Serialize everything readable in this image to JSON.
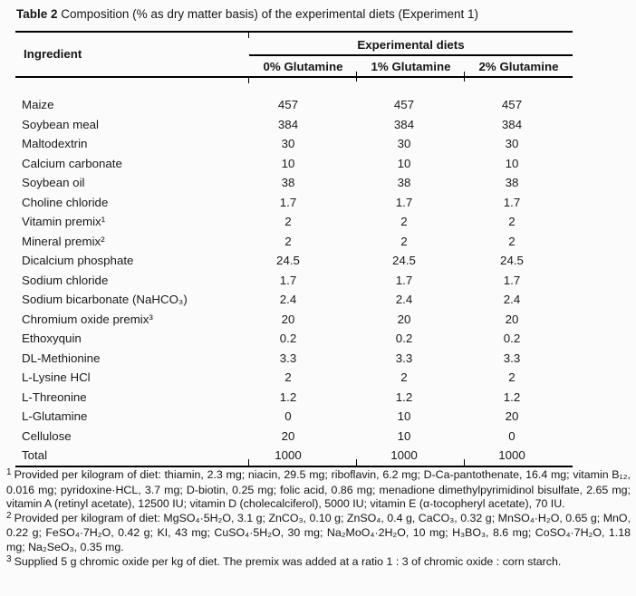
{
  "caption": {
    "label": "Table 2",
    "text": "Composition (% as dry matter basis) of the experimental diets (Experiment 1)"
  },
  "table": {
    "ingredient_header": "Ingredient",
    "group_header": "Experimental diets",
    "columns": [
      "0% Glutamine",
      "1% Glutamine",
      "2% Glutamine"
    ],
    "rows": [
      {
        "ingredient": "Maize",
        "values": [
          "457",
          "457",
          "457"
        ]
      },
      {
        "ingredient": "Soybean meal",
        "values": [
          "384",
          "384",
          "384"
        ]
      },
      {
        "ingredient": "Maltodextrin",
        "values": [
          "30",
          "30",
          "30"
        ]
      },
      {
        "ingredient": "Calcium carbonate",
        "values": [
          "10",
          "10",
          "10"
        ]
      },
      {
        "ingredient": "Soybean oil",
        "values": [
          "38",
          "38",
          "38"
        ]
      },
      {
        "ingredient": "Choline chloride",
        "values": [
          "1.7",
          "1.7",
          "1.7"
        ]
      },
      {
        "ingredient": "Vitamin premix¹",
        "values": [
          "2",
          "2",
          "2"
        ]
      },
      {
        "ingredient": "Mineral premix²",
        "values": [
          "2",
          "2",
          "2"
        ]
      },
      {
        "ingredient": "Dicalcium phosphate",
        "values": [
          "24.5",
          "24.5",
          "24.5"
        ]
      },
      {
        "ingredient": "Sodium chloride",
        "values": [
          "1.7",
          "1.7",
          "1.7"
        ]
      },
      {
        "ingredient": "Sodium bicarbonate (NaHCO₃)",
        "values": [
          "2.4",
          "2.4",
          "2.4"
        ]
      },
      {
        "ingredient": "Chromium oxide premix³",
        "values": [
          "20",
          "20",
          "20"
        ]
      },
      {
        "ingredient": "Ethoxyquin",
        "values": [
          "0.2",
          "0.2",
          "0.2"
        ]
      },
      {
        "ingredient": "DL-Methionine",
        "values": [
          "3.3",
          "3.3",
          "3.3"
        ]
      },
      {
        "ingredient": "L-Lysine HCl",
        "values": [
          "2",
          "2",
          "2"
        ]
      },
      {
        "ingredient": "L-Threonine",
        "values": [
          "1.2",
          "1.2",
          "1.2"
        ]
      },
      {
        "ingredient": "L-Glutamine",
        "values": [
          "0",
          "10",
          "20"
        ]
      },
      {
        "ingredient": "Cellulose",
        "values": [
          "20",
          "10",
          "0"
        ]
      },
      {
        "ingredient": "Total",
        "values": [
          "1000",
          "1000",
          "1000"
        ]
      }
    ]
  },
  "footnotes": [
    {
      "marker": "1",
      "text": "Provided per kilogram of diet: thiamin, 2.3 mg; niacin, 29.5 mg; riboflavin, 6.2 mg; D-Ca-pantothenate, 16.4 mg; vitamin B₁₂, 0.016 mg; pyridoxine·HCL, 3.7 mg; D-biotin, 0.25 mg; folic acid, 0.86 mg; menadione dimethylpyrimidinol bisulfate, 2.65 mg; vitamin A (retinyl acetate), 12500 IU; vitamin D (cholecalciferol), 5000 IU; vitamin E (α-tocopheryl acetate), 70 IU."
    },
    {
      "marker": "2",
      "text": "Provided per kilogram of diet: MgSO₄·5H₂O, 3.1 g; ZnCO₃, 0.10 g; ZnSO₄, 0.4 g, CaCO₃, 0.32 g; MnSO₄·H₂O, 0.65 g; MnO, 0.22 g; FeSO₄·7H₂O, 0.42 g; KI, 43 mg; CuSO₄·5H₂O, 30 mg; Na₂MoO₄·2H₂O, 10 mg; H₃BO₃, 8.6 mg; CoSO₄·7H₂O, 1.18 mg; Na₂SeO₃, 0.35 mg."
    },
    {
      "marker": "3",
      "text": "Supplied 5 g chromic oxide per kg of diet. The premix was added at a ratio 1 : 3 of chromic oxide : corn starch."
    }
  ],
  "colors": {
    "background": "#fbfbfb",
    "text": "#1a1a1a",
    "rule": "#000000"
  }
}
